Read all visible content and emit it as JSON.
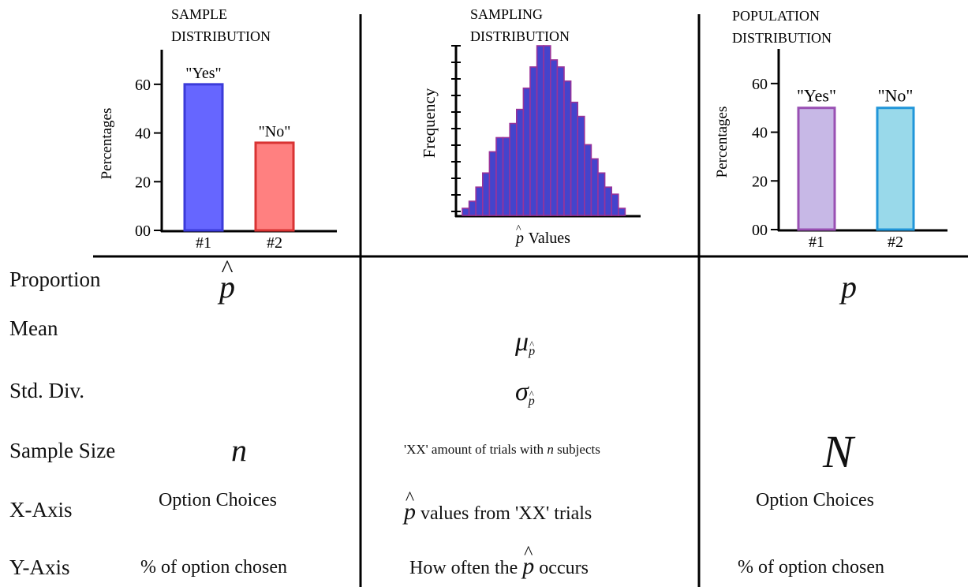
{
  "panels": {
    "sample": {
      "title_line1": "SAMPLE",
      "title_line2": "DISTRIBUTION",
      "ylabel": "Percentages",
      "yticks": [
        "00",
        "20",
        "40",
        "60"
      ],
      "bars": [
        {
          "label": "\"Yes\"",
          "category": "#1",
          "value": 60,
          "fill": "#6666ff",
          "stroke": "#3b3bd9"
        },
        {
          "label": "\"No\"",
          "category": "#2",
          "value": 36,
          "fill": "#ff8080",
          "stroke": "#d93333"
        }
      ]
    },
    "sampling": {
      "title_line1": "SAMPLING",
      "title_line2": "DISTRIBUTION",
      "ylabel": "Frequency",
      "xlabel_symbol": "p",
      "xlabel_text": " Values",
      "bar_fill": "#4444cc",
      "bar_stroke": "#993399"
    },
    "population": {
      "title_line1": "POPULATION",
      "title_line2": "DISTRIBUTION",
      "ylabel": "Percentages",
      "yticks": [
        "00",
        "20",
        "40",
        "60"
      ],
      "bars": [
        {
          "label": "\"Yes\"",
          "category": "#1",
          "value": 50,
          "fill": "#c7b8e6",
          "stroke": "#9950b3"
        },
        {
          "label": "\"No\"",
          "category": "#2",
          "value": 50,
          "fill": "#99d9ea",
          "stroke": "#2196d9"
        }
      ]
    }
  },
  "rows": {
    "proportion": {
      "label": "Proportion",
      "sample_symbol": "p",
      "population_symbol": "p"
    },
    "mean": {
      "label": "Mean",
      "sampling_symbol": "μ",
      "subscript": "p"
    },
    "std": {
      "label": "Std. Div.",
      "sampling_symbol": "σ",
      "subscript": "p"
    },
    "sample_size": {
      "label": "Sample Size",
      "sample_symbol": "n",
      "sampling_pre": "'XX' amount of trials with ",
      "sampling_italic": "n",
      "sampling_post": " subjects",
      "population_symbol": "N"
    },
    "x_axis": {
      "label": "X-Axis",
      "sample_text": "Option Choices",
      "sampling_symbol": "p",
      "sampling_text": " values from 'XX' trials",
      "population_text": "Option Choices"
    },
    "y_axis": {
      "label": "Y-Axis",
      "sample_text": "% of option chosen",
      "sampling_pre": "How often the ",
      "sampling_symbol": "p",
      "sampling_post": " occurs",
      "population_text": "% of option chosen"
    }
  },
  "chart_data": [
    {
      "type": "bar",
      "title": "SAMPLE DISTRIBUTION",
      "categories": [
        "#1",
        "#2"
      ],
      "values": [
        60,
        36
      ],
      "ylabel": "Percentages",
      "ylim": [
        0,
        70
      ]
    },
    {
      "type": "bar",
      "title": "SAMPLING DISTRIBUTION",
      "ylabel": "Frequency",
      "xlabel": "p̂ Values",
      "values": [
        1,
        2,
        4,
        6,
        9,
        11,
        11,
        13,
        15,
        18,
        21,
        24,
        24,
        22,
        21,
        19,
        16,
        14,
        10,
        8,
        6,
        4,
        3,
        1
      ]
    },
    {
      "type": "bar",
      "title": "POPULATION DISTRIBUTION",
      "categories": [
        "#1",
        "#2"
      ],
      "values": [
        50,
        50
      ],
      "ylabel": "Percentages",
      "ylim": [
        0,
        70
      ]
    }
  ]
}
